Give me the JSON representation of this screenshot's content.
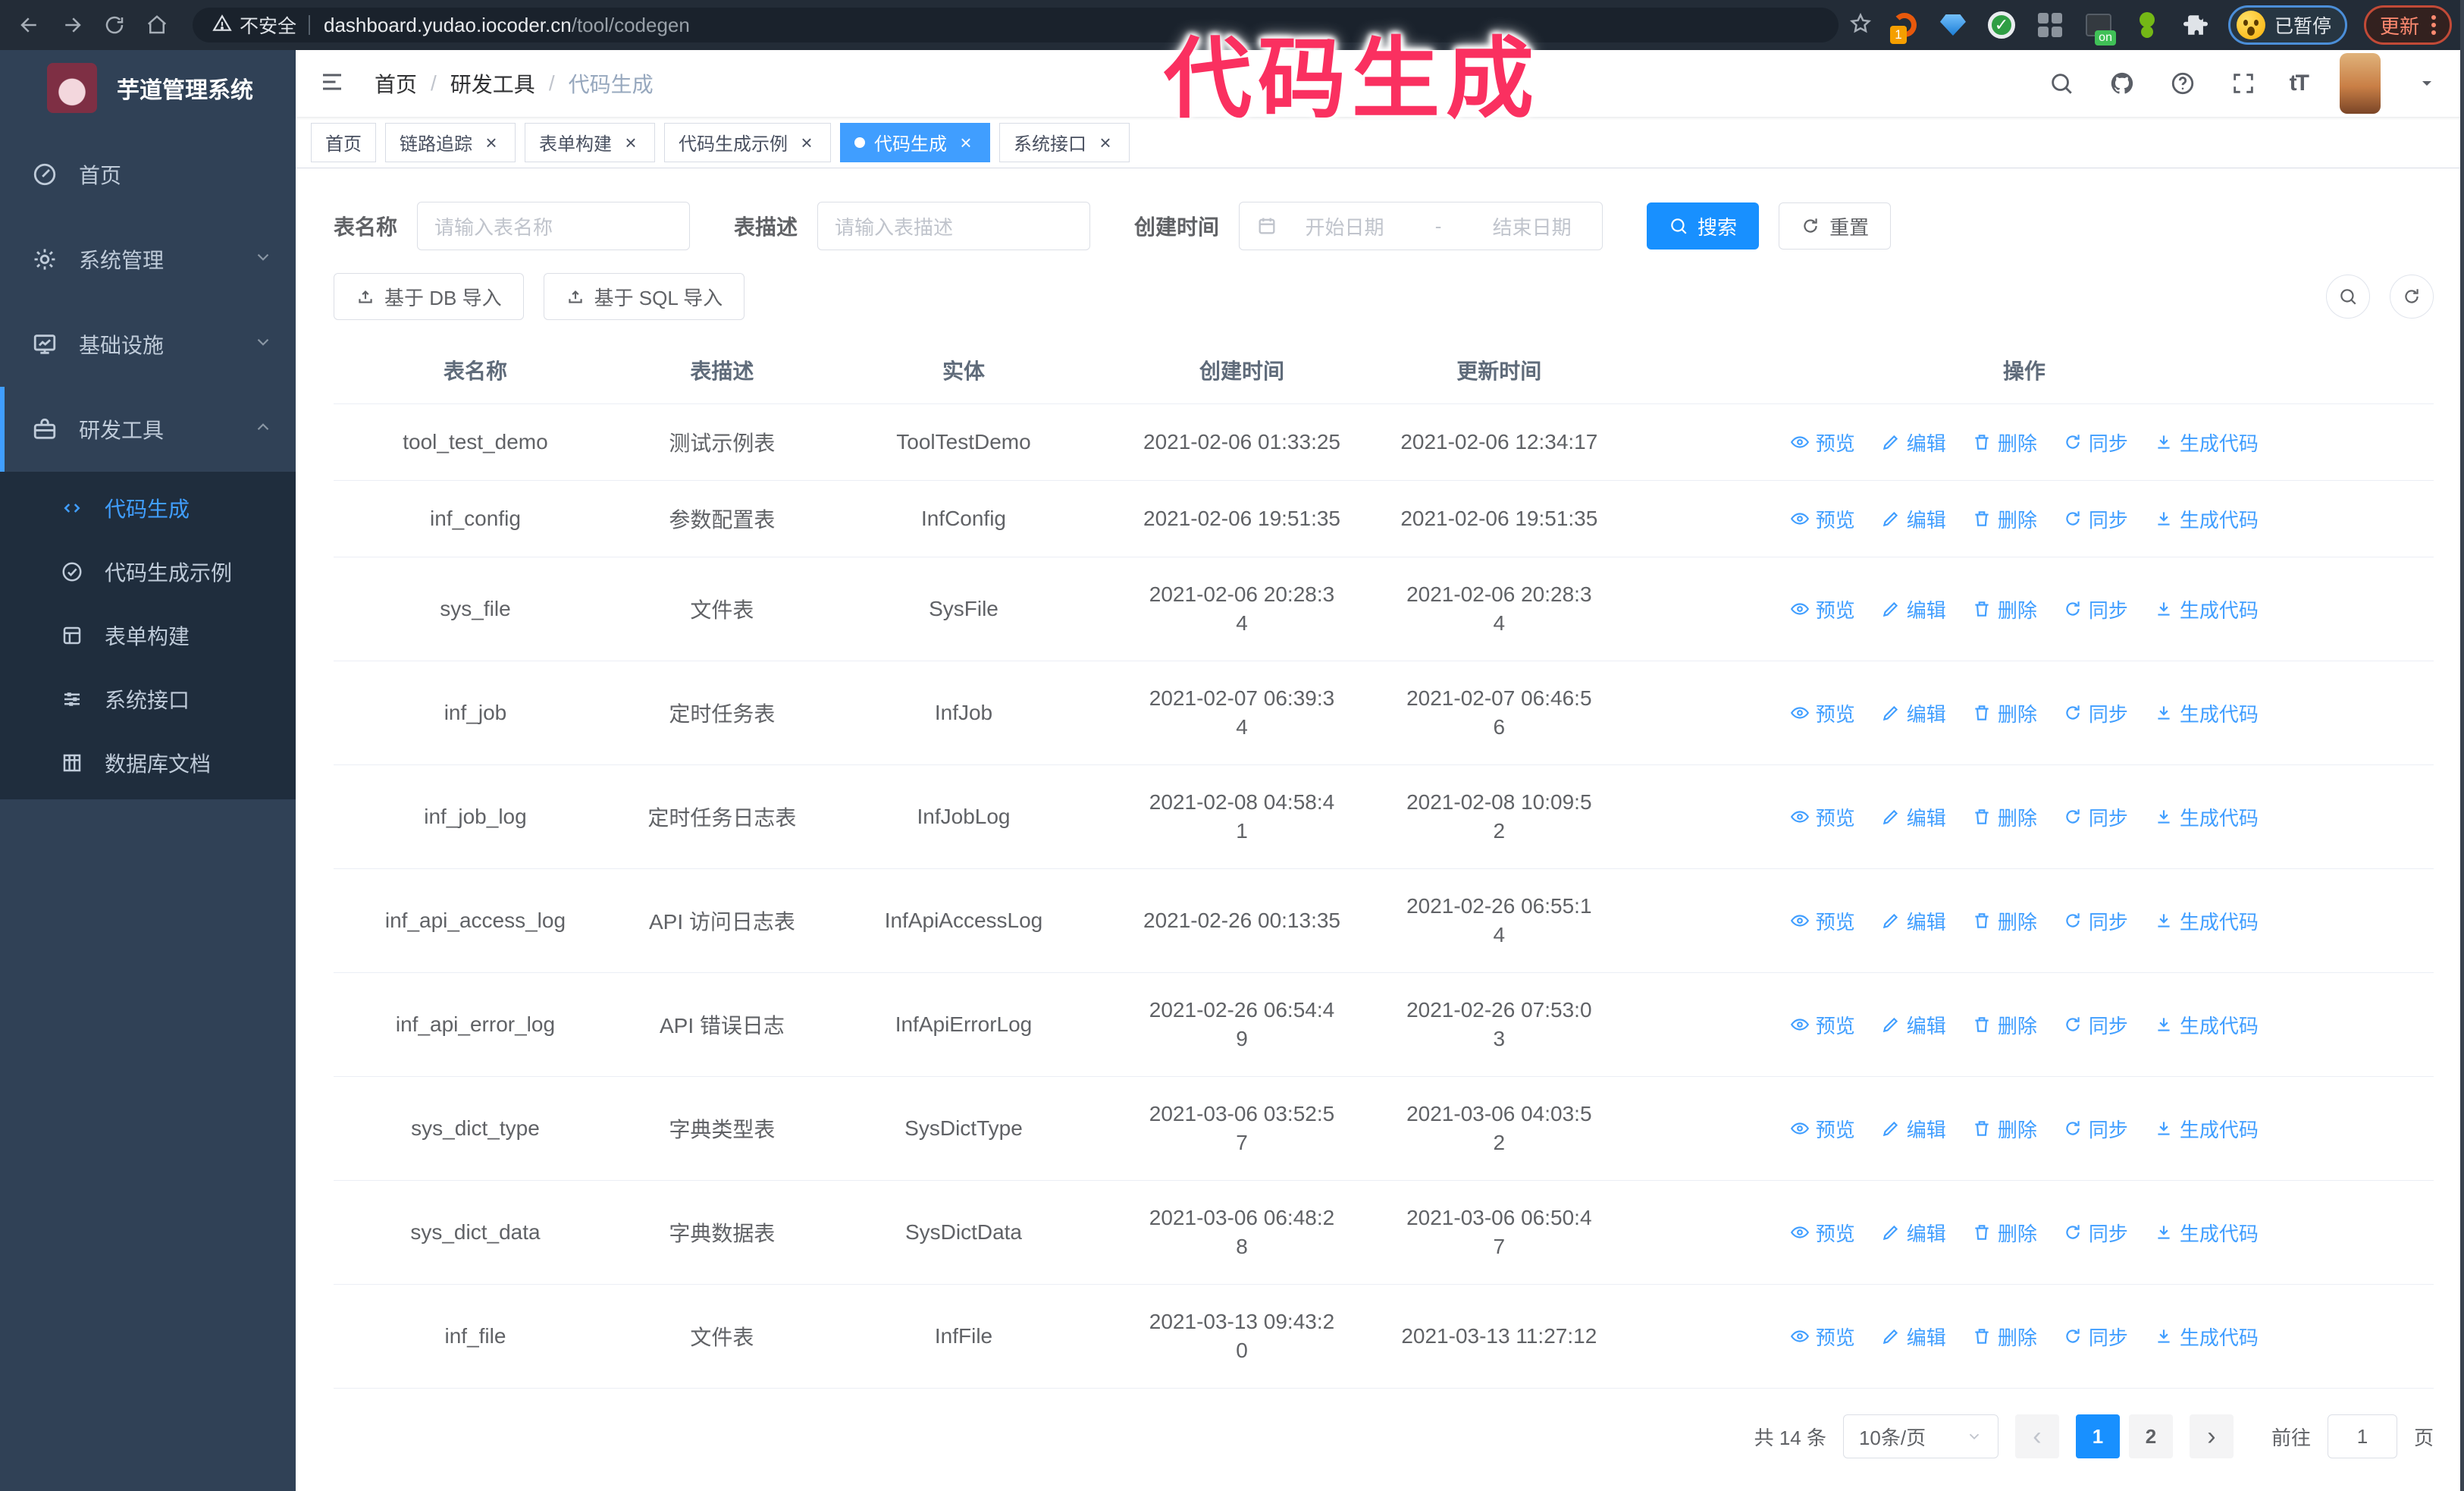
{
  "annotation": {
    "text": "代码生成",
    "color": "#fa3060"
  },
  "browser": {
    "security_label": "不安全",
    "url_host": "dashboard.yudao.iocoder.cn",
    "url_path": "/tool/codegen",
    "extension_badge": "1",
    "extension_on_label": "on",
    "profile_paused_label": "已暂停",
    "update_label": "更新"
  },
  "sidebar": {
    "app_title": "芋道管理系统",
    "items": [
      {
        "label": "首页",
        "icon": "dashboard-icon"
      },
      {
        "label": "系统管理",
        "icon": "gear-icon"
      },
      {
        "label": "基础设施",
        "icon": "monitor-icon"
      },
      {
        "label": "研发工具",
        "icon": "toolbox-icon"
      }
    ],
    "sub_items": [
      {
        "label": "代码生成",
        "icon": "code-icon",
        "active": true
      },
      {
        "label": "代码生成示例",
        "icon": "badge-check-icon"
      },
      {
        "label": "表单构建",
        "icon": "form-icon"
      },
      {
        "label": "系统接口",
        "icon": "sliders-icon"
      },
      {
        "label": "数据库文档",
        "icon": "database-doc-icon"
      }
    ]
  },
  "breadcrumb": {
    "separator": "/",
    "items": [
      "首页",
      "研发工具",
      "代码生成"
    ]
  },
  "tags": {
    "items": [
      {
        "label": "首页",
        "closable": false,
        "active": false
      },
      {
        "label": "链路追踪",
        "closable": true,
        "active": false
      },
      {
        "label": "表单构建",
        "closable": true,
        "active": false
      },
      {
        "label": "代码生成示例",
        "closable": true,
        "active": false
      },
      {
        "label": "代码生成",
        "closable": true,
        "active": true
      },
      {
        "label": "系统接口",
        "closable": true,
        "active": false
      }
    ]
  },
  "search": {
    "table_name_label": "表名称",
    "table_name_placeholder": "请输入表名称",
    "table_desc_label": "表描述",
    "table_desc_placeholder": "请输入表描述",
    "create_time_label": "创建时间",
    "date_start_placeholder": "开始日期",
    "date_separator": "-",
    "date_end_placeholder": "结束日期",
    "search_label": "搜索",
    "reset_label": "重置"
  },
  "toolbar": {
    "import_db_label": "基于 DB 导入",
    "import_sql_label": "基于 SQL 导入"
  },
  "table": {
    "headers": [
      "表名称",
      "表描述",
      "实体",
      "创建时间",
      "更新时间",
      "操作"
    ],
    "actions": [
      {
        "label": "预览",
        "icon": "eye-icon"
      },
      {
        "label": "编辑",
        "icon": "edit-icon"
      },
      {
        "label": "删除",
        "icon": "delete-icon"
      },
      {
        "label": "同步",
        "icon": "sync-icon"
      },
      {
        "label": "生成代码",
        "icon": "download-icon"
      }
    ],
    "rows": [
      {
        "name": "tool_test_demo",
        "desc": "测试示例表",
        "entity": "ToolTestDemo",
        "created": "2021-02-06 01:33:25",
        "updated": "2021-02-06 12:34:17"
      },
      {
        "name": "inf_config",
        "desc": "参数配置表",
        "entity": "InfConfig",
        "created": "2021-02-06 19:51:35",
        "updated": "2021-02-06 19:51:35"
      },
      {
        "name": "sys_file",
        "desc": "文件表",
        "entity": "SysFile",
        "created": "2021-02-06 20:28:3\n4",
        "updated": "2021-02-06 20:28:3\n4"
      },
      {
        "name": "inf_job",
        "desc": "定时任务表",
        "entity": "InfJob",
        "created": "2021-02-07 06:39:3\n4",
        "updated": "2021-02-07 06:46:5\n6"
      },
      {
        "name": "inf_job_log",
        "desc": "定时任务日志表",
        "entity": "InfJobLog",
        "created": "2021-02-08 04:58:4\n1",
        "updated": "2021-02-08 10:09:5\n2"
      },
      {
        "name": "inf_api_access_log",
        "desc": "API 访问日志表",
        "entity": "InfApiAccessLog",
        "created": "2021-02-26 00:13:35",
        "updated": "2021-02-26 06:55:1\n4"
      },
      {
        "name": "inf_api_error_log",
        "desc": "API 错误日志",
        "entity": "InfApiErrorLog",
        "created": "2021-02-26 06:54:4\n9",
        "updated": "2021-02-26 07:53:0\n3"
      },
      {
        "name": "sys_dict_type",
        "desc": "字典类型表",
        "entity": "SysDictType",
        "created": "2021-03-06 03:52:5\n7",
        "updated": "2021-03-06 04:03:5\n2"
      },
      {
        "name": "sys_dict_data",
        "desc": "字典数据表",
        "entity": "SysDictData",
        "created": "2021-03-06 06:48:2\n8",
        "updated": "2021-03-06 06:50:4\n7"
      },
      {
        "name": "inf_file",
        "desc": "文件表",
        "entity": "InfFile",
        "created": "2021-03-13 09:43:2\n0",
        "updated": "2021-03-13 11:27:12"
      }
    ]
  },
  "pagination": {
    "total_label": "共 14 条",
    "page_size_label": "10条/页",
    "pages": [
      "1",
      "2"
    ],
    "active_page": "1",
    "goto_label": "前往",
    "goto_value": "1",
    "page_suffix_label": "页"
  }
}
